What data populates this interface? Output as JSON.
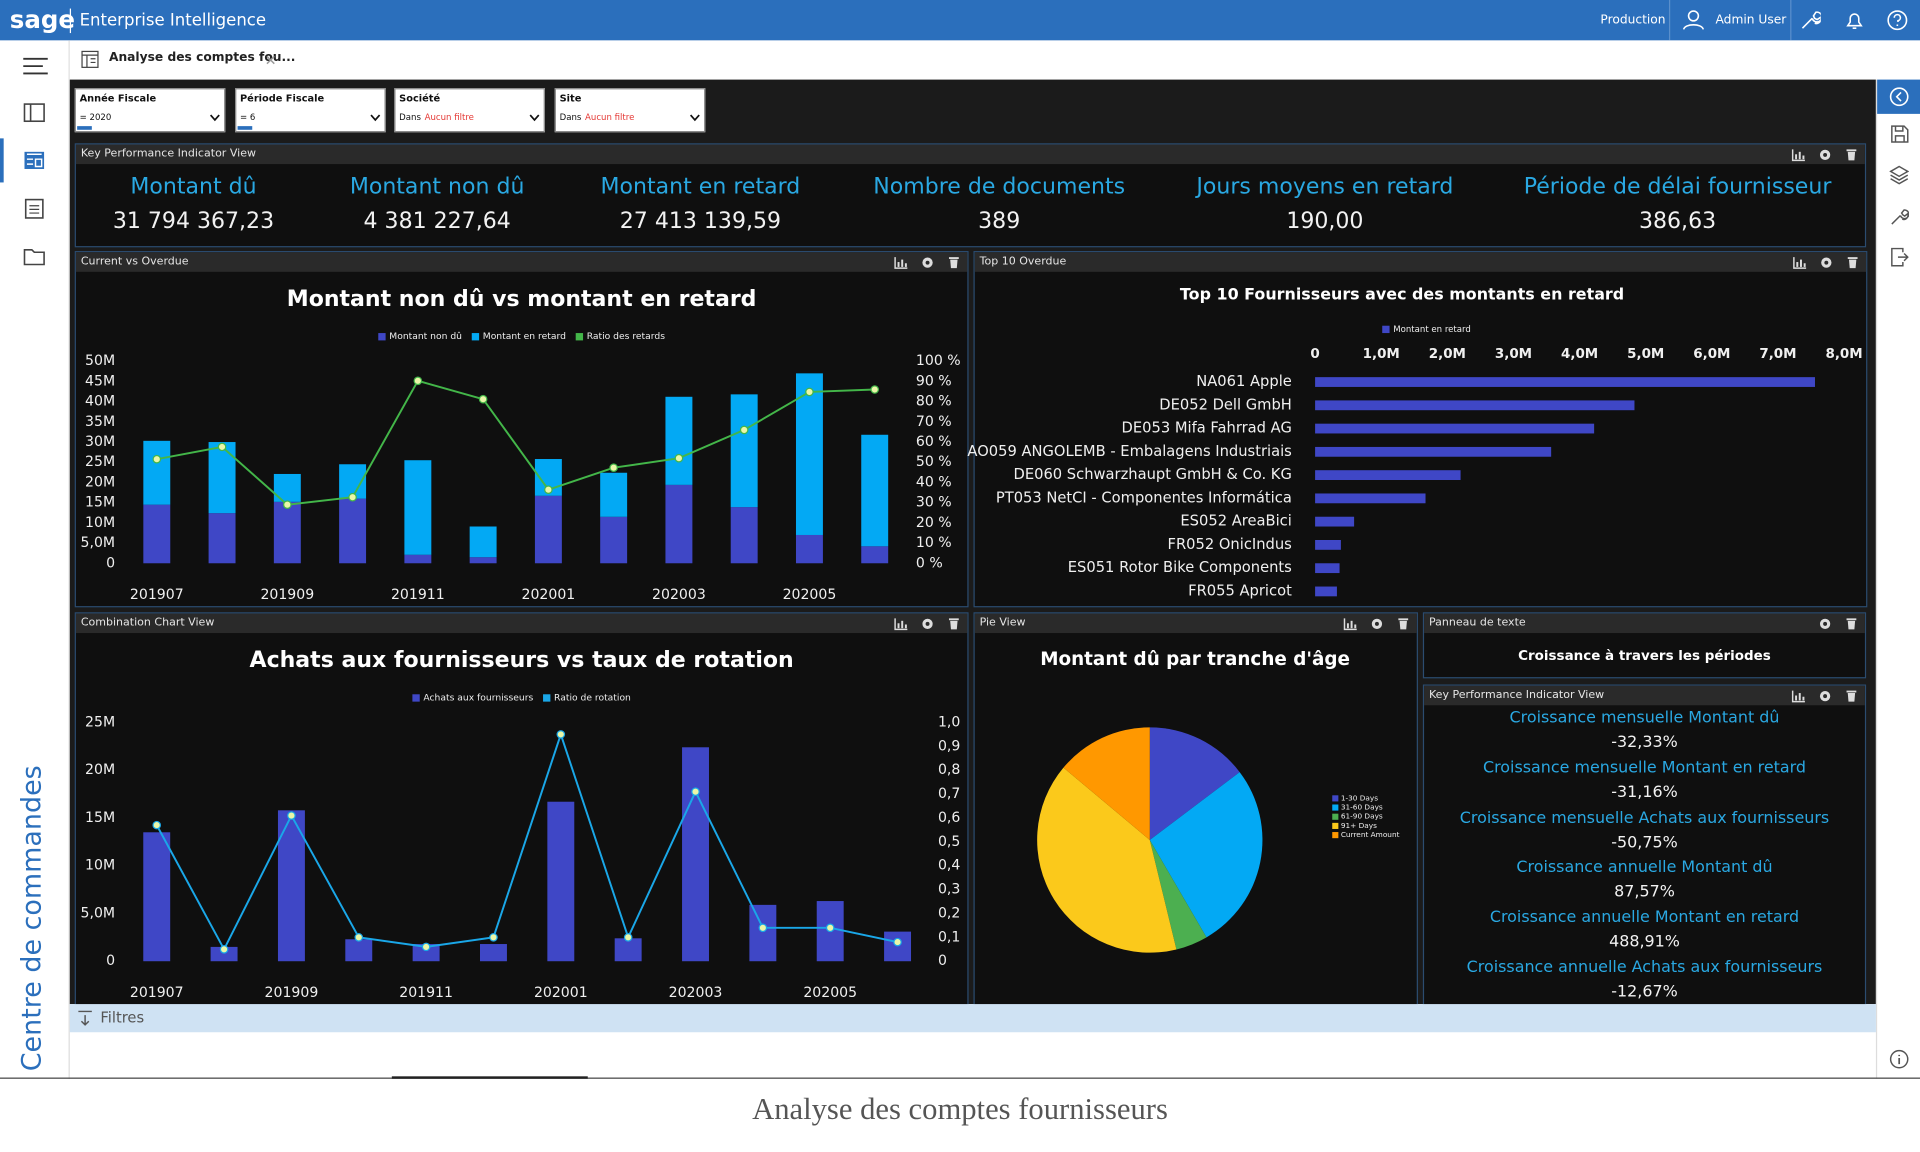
{
  "header": {
    "brand": "sage",
    "app": "Enterprise Intelligence",
    "environment": "Production",
    "user": "Admin User"
  },
  "sidebar": {
    "label": "Centre de commandes"
  },
  "tab": {
    "title": "Analyse des comptes fou..."
  },
  "filters": [
    {
      "label": "Année Fiscale",
      "value": "= 2020"
    },
    {
      "label": "Période Fiscale",
      "value": "= 6"
    },
    {
      "label": "Société",
      "operator": "Dans",
      "value": "Aucun filtre"
    },
    {
      "label": "Site",
      "operator": "Dans",
      "value": "Aucun filtre"
    }
  ],
  "kpi_panel": {
    "title": "Key Performance Indicator View",
    "items": [
      {
        "label": "Montant dû",
        "value": "31 794 367,23"
      },
      {
        "label": "Montant non dû",
        "value": "4 381 227,64"
      },
      {
        "label": "Montant en retard",
        "value": "27 413 139,59"
      },
      {
        "label": "Nombre de documents",
        "value": "389"
      },
      {
        "label": "Jours moyens en retard",
        "value": "190,00"
      },
      {
        "label": "Période de délai fournisseur",
        "value": "386,63"
      }
    ]
  },
  "panels": {
    "current_vs_overdue": "Current vs Overdue",
    "top10": "Top 10 Overdue",
    "combination": "Combination Chart View",
    "pie": "Pie View",
    "text": "Panneau de texte",
    "kpi": "Key Performance Indicator View"
  },
  "text_panel": {
    "text": "Croissance à travers les périodes"
  },
  "growth_kpis": [
    {
      "label": "Croissance mensuelle Montant dû",
      "value": "-32,33%"
    },
    {
      "label": "Croissance mensuelle Montant en retard",
      "value": "-31,16%"
    },
    {
      "label": "Croissance mensuelle Achats aux fournisseurs",
      "value": "-50,75%"
    },
    {
      "label": "Croissance annuelle Montant dû",
      "value": "87,57%"
    },
    {
      "label": "Croissance annuelle Montant en retard",
      "value": "488,91%"
    },
    {
      "label": "Croissance annuelle Achats aux fournisseurs",
      "value": "-12,67%"
    }
  ],
  "footer": {
    "filters": "Filtres"
  },
  "caption": "Analyse des comptes fournisseurs",
  "chart_data": [
    {
      "type": "combo",
      "title": "Montant non dû vs montant en retard",
      "stacked": true,
      "categories": [
        "201907",
        null,
        "201909",
        null,
        "201911",
        null,
        "202001",
        null,
        "202003",
        null,
        "202005",
        null
      ],
      "series": [
        {
          "name": "Montant non dû",
          "color": "#3f47c6",
          "kind": "bar",
          "values": [
            14.5,
            12.4,
            15.2,
            16,
            2.1,
            1.5,
            16.7,
            11.5,
            19.4,
            13.9,
            7,
            4.2
          ]
        },
        {
          "name": "Montant en retard",
          "color": "#03a9f4",
          "kind": "bar",
          "values": [
            15.8,
            17.6,
            6.9,
            8.5,
            23.4,
            7.6,
            9.1,
            10.9,
            21.8,
            27.9,
            40,
            27.6
          ]
        },
        {
          "name": "Ratio des retards",
          "color": "#43b649",
          "kind": "line",
          "axis": "y2",
          "values": [
            51.5,
            57.6,
            29,
            32.7,
            90.3,
            81.2,
            36.4,
            47.3,
            52,
            66,
            84.8,
            86
          ]
        }
      ],
      "ylim": [
        0,
        50
      ],
      "yticks": [
        0,
        {
          "value": 5,
          "label": "5,0M"
        },
        {
          "value": 10,
          "label": "10M"
        },
        {
          "value": 15,
          "label": "15M"
        },
        {
          "value": 20,
          "label": "20M"
        },
        {
          "value": 25,
          "label": "25M"
        },
        {
          "value": 30,
          "label": "30M"
        },
        {
          "value": 35,
          "label": "35M"
        },
        {
          "value": 40,
          "label": "40M"
        },
        {
          "value": 45,
          "label": "45M"
        },
        {
          "value": 50,
          "label": "50M"
        }
      ],
      "y2lim": [
        0,
        100
      ],
      "y2ticks": [
        {
          "value": 0,
          "label": "0 %"
        },
        {
          "value": 10,
          "label": "10 %"
        },
        {
          "value": 20,
          "label": "20 %"
        },
        {
          "value": 30,
          "label": "30 %"
        },
        {
          "value": 40,
          "label": "40 %"
        },
        {
          "value": 50,
          "label": "50 %"
        },
        {
          "value": 60,
          "label": "60 %"
        },
        {
          "value": 70,
          "label": "70 %"
        },
        {
          "value": 80,
          "label": "80 %"
        },
        {
          "value": 90,
          "label": "90 %"
        },
        {
          "value": 100,
          "label": "100 %"
        }
      ]
    },
    {
      "type": "bar",
      "orientation": "horizontal",
      "title": "Top 10 Fournisseurs avec des montants en retard",
      "categories": [
        "NA061 Apple",
        "DE052 Dell GmbH",
        "DE053 Mifa Fahrrad AG",
        "AO059 ANGOLEMB - Embalagens Industriais",
        "DE060 Schwarzhaupt GmbH & Co. KG",
        "PT053 NetCI - Componentes Informática",
        "ES052 AreaBici",
        "FR052 OnicIndus",
        "ES051 Rotor Bike Components",
        "FR055 Apricot"
      ],
      "series": [
        {
          "name": "Montant en retard",
          "color": "#3f47c6",
          "values": [
            7.56,
            4.83,
            4.22,
            3.57,
            2.2,
            1.67,
            0.59,
            0.39,
            0.37,
            0.33
          ]
        }
      ],
      "xlim": [
        0,
        8
      ],
      "xticks": [
        0,
        {
          "value": 1,
          "label": "1,0M"
        },
        {
          "value": 2,
          "label": "2,0M"
        },
        {
          "value": 3,
          "label": "3,0M"
        },
        {
          "value": 4,
          "label": "4,0M"
        },
        {
          "value": 5,
          "label": "5,0M"
        },
        {
          "value": 6,
          "label": "6,0M"
        },
        {
          "value": 7,
          "label": "7,0M"
        },
        {
          "value": 8,
          "label": "8,0M"
        }
      ]
    },
    {
      "type": "combo",
      "title": "Achats aux fournisseurs vs taux de rotation",
      "categories": [
        "201907",
        null,
        "201909",
        null,
        "201911",
        null,
        "202001",
        null,
        "202003",
        null,
        "202005",
        null
      ],
      "series": [
        {
          "name": "Achats aux fournisseurs",
          "color": "#3f47c6",
          "kind": "bar",
          "values": [
            13.5,
            1.5,
            15.8,
            2.3,
            1.8,
            1.8,
            16.7,
            2.4,
            22.4,
            5.9,
            6.3,
            3.1
          ]
        },
        {
          "name": "Ratio de rotation",
          "color": "#1aa7e8",
          "kind": "line",
          "axis": "y2",
          "values": [
            0.57,
            0.05,
            0.61,
            0.1,
            0.06,
            0.1,
            0.95,
            0.1,
            0.71,
            0.14,
            0.14,
            0.08
          ]
        }
      ],
      "ylim": [
        0,
        25
      ],
      "yticks": [
        0,
        {
          "value": 5,
          "label": "5,0M"
        },
        {
          "value": 10,
          "label": "10M"
        },
        {
          "value": 15,
          "label": "15M"
        },
        {
          "value": 20,
          "label": "20M"
        },
        {
          "value": 25,
          "label": "25M"
        }
      ],
      "y2lim": [
        0,
        1
      ],
      "y2ticks": [
        0,
        {
          "value": 0.1,
          "label": "0,1"
        },
        {
          "value": 0.2,
          "label": "0,2"
        },
        {
          "value": 0.3,
          "label": "0,3"
        },
        {
          "value": 0.4,
          "label": "0,4"
        },
        {
          "value": 0.5,
          "label": "0,5"
        },
        {
          "value": 0.6,
          "label": "0,6"
        },
        {
          "value": 0.7,
          "label": "0,7"
        },
        {
          "value": 0.8,
          "label": "0,8"
        },
        {
          "value": 0.9,
          "label": "0,9"
        },
        {
          "value": 1,
          "label": "1,0"
        }
      ]
    },
    {
      "type": "pie",
      "title": "Montant dû par tranche d'âge",
      "categories": [
        "1-30 Days",
        "31-60 Days",
        "61-90 Days",
        "91+ Days",
        "Current Amount"
      ],
      "values": [
        14.7,
        26.9,
        4.6,
        39.9,
        13.9
      ],
      "colors": [
        "#3f47c6",
        "#03a9f4",
        "#4caf50",
        "#fbc91b",
        "#ff9800"
      ]
    }
  ]
}
